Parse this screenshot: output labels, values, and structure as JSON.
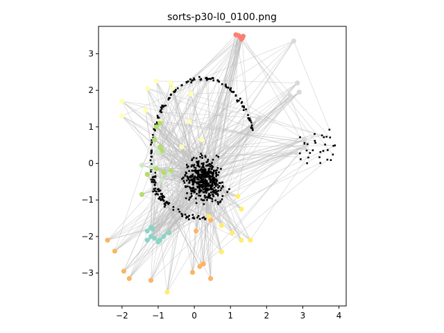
{
  "chart_data": {
    "type": "scatter",
    "title": "sorts-p30-l0_0100.png",
    "xlabel": "",
    "ylabel": "",
    "xlim": [
      -2.65,
      4.2
    ],
    "ylim": [
      -3.9,
      3.75
    ],
    "xticks": [
      -2,
      -1,
      0,
      1,
      2,
      3,
      4
    ],
    "yticks": [
      -3,
      -2,
      -1,
      0,
      1,
      2,
      3
    ],
    "xtick_labels": [
      "−2",
      "−1",
      "0",
      "1",
      "2",
      "3",
      "4"
    ],
    "ytick_labels": [
      "−3",
      "−2",
      "−1",
      "0",
      "1",
      "2",
      "3"
    ],
    "grid": false,
    "colors": {
      "edge": "#bdbdbd",
      "black_points": "#000000",
      "red": "#fb8072",
      "yellow_light": "#ffffb3",
      "yellow": "#ffed6f",
      "green": "#b3de69",
      "green_light": "#ccebc5",
      "teal": "#8dd3c7",
      "orange": "#fdb462",
      "grey": "#d9d9d9"
    },
    "series": [
      {
        "color": "#fb8072",
        "points": [
          [
            1.15,
            3.52
          ],
          [
            1.22,
            3.5
          ],
          [
            1.28,
            3.45
          ],
          [
            1.32,
            3.42
          ],
          [
            1.35,
            3.48
          ],
          [
            1.3,
            3.4
          ]
        ]
      },
      {
        "color": "#ffffb3",
        "points": [
          [
            -1.3,
            2.05
          ],
          [
            -1.05,
            2.25
          ],
          [
            -0.65,
            2.2
          ],
          [
            -0.6,
            2.05
          ],
          [
            -2.0,
            1.7
          ],
          [
            -2.0,
            1.3
          ],
          [
            -1.35,
            1.45
          ],
          [
            -0.95,
            1.15
          ],
          [
            -0.1,
            1.9
          ],
          [
            -0.15,
            1.15
          ],
          [
            0.2,
            0.65
          ],
          [
            -0.35,
            0.45
          ]
        ]
      },
      {
        "color": "#b3de69",
        "points": [
          [
            -1.05,
            1.0
          ],
          [
            -0.95,
            1.1
          ],
          [
            -1.1,
            0.65
          ],
          [
            -0.95,
            0.45
          ],
          [
            -0.9,
            0.35
          ],
          [
            -1.3,
            -0.3
          ],
          [
            -1.05,
            -0.15
          ],
          [
            -0.85,
            -0.25
          ],
          [
            -0.65,
            -0.2
          ],
          [
            -1.45,
            -0.85
          ]
        ]
      },
      {
        "color": "#ccebc5",
        "points": [
          [
            -1.45,
            -0.05
          ],
          [
            -1.2,
            -0.1
          ],
          [
            -0.7,
            -0.3
          ],
          [
            -0.9,
            -0.45
          ],
          [
            -1.0,
            0.3
          ]
        ]
      },
      {
        "color": "#8dd3c7",
        "points": [
          [
            -1.3,
            -1.85
          ],
          [
            -1.2,
            -1.75
          ],
          [
            -1.15,
            -1.8
          ],
          [
            -1.1,
            -2.05
          ],
          [
            -1.0,
            -2.15
          ],
          [
            -0.95,
            -2.1
          ],
          [
            -0.85,
            -2.0
          ],
          [
            -0.7,
            -1.9
          ],
          [
            -1.3,
            -2.1
          ],
          [
            -1.2,
            -2.0
          ]
        ]
      },
      {
        "color": "#fdb462",
        "points": [
          [
            -2.4,
            -2.1
          ],
          [
            -2.2,
            -2.4
          ],
          [
            -1.95,
            -2.95
          ],
          [
            -1.8,
            -3.15
          ],
          [
            -1.2,
            -3.2
          ],
          [
            -0.05,
            -2.98
          ],
          [
            0.15,
            -2.82
          ],
          [
            0.25,
            -2.75
          ],
          [
            0.45,
            -3.15
          ],
          [
            0.05,
            -1.85
          ],
          [
            0.45,
            -1.55
          ]
        ]
      },
      {
        "color": "#ffed6f",
        "points": [
          [
            -0.75,
            -3.52
          ],
          [
            0.75,
            -2.42
          ],
          [
            1.05,
            -1.9
          ],
          [
            1.3,
            -2.1
          ],
          [
            1.55,
            -2.1
          ],
          [
            1.3,
            -1.25
          ],
          [
            1.2,
            -0.9
          ],
          [
            0.75,
            -1.7
          ],
          [
            0.4,
            -1.45
          ]
        ]
      },
      {
        "color": "#d9d9d9",
        "points": [
          [
            2.75,
            3.35
          ],
          [
            2.85,
            2.2
          ],
          [
            2.9,
            1.95
          ],
          [
            2.65,
            1.85
          ],
          [
            3.05,
            0.65
          ],
          [
            3.05,
            0.45
          ],
          [
            2.8,
            0.3
          ],
          [
            1.75,
            1.2
          ],
          [
            1.8,
            1.25
          ],
          [
            0.9,
            0.45
          ]
        ]
      }
    ]
  }
}
